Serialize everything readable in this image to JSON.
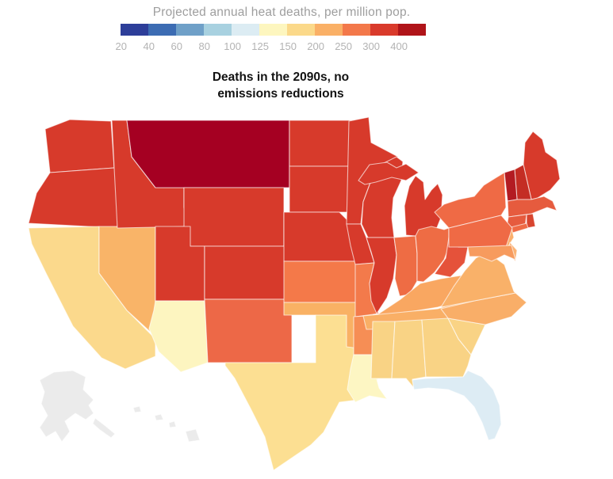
{
  "header": {
    "title": "Projected annual heat deaths, per million pop.",
    "subtitle_line1": "Deaths in the 2090s, no",
    "subtitle_line2": "emissions reductions"
  },
  "legend": {
    "labels": [
      "20",
      "40",
      "60",
      "80",
      "100",
      "125",
      "150",
      "200",
      "250",
      "300",
      "400"
    ],
    "colors": [
      "#2d3e99",
      "#3c6cb3",
      "#6fa0c8",
      "#a8d1e0",
      "#dcecf3",
      "#fdf6bf",
      "#fbd98a",
      "#fab066",
      "#f3784a",
      "#d93a2b",
      "#b01419"
    ]
  },
  "chart_data": {
    "type": "choropleth",
    "title": "Projected annual heat deaths, per million pop.",
    "scenario": "Deaths in the 2090s, no emissions reductions",
    "unit": "deaths per million population",
    "scale_breaks": [
      20,
      40,
      60,
      80,
      100,
      125,
      150,
      200,
      250,
      300,
      400
    ],
    "scale_colors": [
      "#2d3e99",
      "#3c6cb3",
      "#6fa0c8",
      "#a8d1e0",
      "#dcecf3",
      "#fdf6bf",
      "#fbd98a",
      "#fab066",
      "#f3784a",
      "#d93a2b",
      "#b01419"
    ],
    "no_data_color": "#ebebeb",
    "states": [
      {
        "id": "WA",
        "name": "Washington",
        "band": "300",
        "fill": "#d73a2b",
        "polys": [
          "57,163 88,151 140,153 144,212 63,218"
        ]
      },
      {
        "id": "OR",
        "name": "Oregon",
        "band": "300",
        "fill": "#d73a2b",
        "polys": [
          "63,218 144,212 150,222 148,288 36,282 46,244"
        ]
      },
      {
        "id": "CA",
        "name": "California",
        "band": "150",
        "fill": "#fbd98c",
        "polys": [
          "36,288 125,286 125,345 160,392 196,428 196,450 158,466 128,452 92,412 58,345 40,308"
        ]
      },
      {
        "id": "NV",
        "name": "Nevada",
        "band": "200",
        "fill": "#f9b468",
        "polys": [
          "125,286 196,286 196,425 160,392 125,345"
        ]
      },
      {
        "id": "ID",
        "name": "Idaho",
        "band": "300",
        "fill": "#d73a2b",
        "polys": [
          "141,152 160,152 166,198 196,237 232,237 232,262 240,286 148,288 144,212"
        ]
      },
      {
        "id": "MT",
        "name": "Montana",
        "band": "400+",
        "fill": "#a50022",
        "polys": [
          "160,152 365,152 365,237 232,237 196,237 166,198"
        ]
      },
      {
        "id": "WY",
        "name": "Wyoming",
        "band": "300",
        "fill": "#d73a2b",
        "polys": [
          "232,237 358,237 358,311 232,311"
        ]
      },
      {
        "id": "UT",
        "name": "Utah",
        "band": "300",
        "fill": "#d73a2b",
        "polys": [
          "196,286 240,286 240,311 258,311 258,380 196,380"
        ]
      },
      {
        "id": "CO",
        "name": "Colorado",
        "band": "300",
        "fill": "#d73a2b",
        "polys": [
          "258,311 368,311 368,378 258,378"
        ]
      },
      {
        "id": "AZ",
        "name": "Arizona",
        "band": "125",
        "fill": "#fdf5c0",
        "polys": [
          "196,380 258,380 262,458 228,470 200,444 188,415 194,392"
        ]
      },
      {
        "id": "NM",
        "name": "New Mexico",
        "band": "250",
        "fill": "#ed6847",
        "polys": [
          "258,378 368,378 368,458 262,458"
        ]
      },
      {
        "id": "ND",
        "name": "North Dakota",
        "band": "300",
        "fill": "#d73a2b",
        "polys": [
          "365,152 448,152 446,168 448,210 365,210"
        ]
      },
      {
        "id": "SD",
        "name": "South Dakota",
        "band": "300",
        "fill": "#d73a2b",
        "polys": [
          "365,210 448,210 453,225 450,268 365,268"
        ]
      },
      {
        "id": "NE",
        "name": "Nebraska",
        "band": "300",
        "fill": "#d73a2b",
        "polys": [
          "358,268 428,268 445,285 452,305 452,330 358,330"
        ]
      },
      {
        "id": "KS",
        "name": "Kansas",
        "band": "250",
        "fill": "#f47949",
        "polys": [
          "358,330 452,330 472,332 470,382 358,382"
        ]
      },
      {
        "id": "OK",
        "name": "Oklahoma",
        "band": "200",
        "fill": "#f9b164",
        "polys": [
          "358,382 470,382 472,437 452,440 398,436 398,398 358,398"
        ]
      },
      {
        "id": "TX",
        "name": "Texas",
        "band": "150",
        "fill": "#fcdf92",
        "polys": [
          "398,398 437,398 437,438 452,440 472,437 478,460 474,496 452,505 428,508 408,546 392,562 345,594 334,552 316,516 296,478 284,462 284,458 398,458"
        ]
      },
      {
        "id": "MN",
        "name": "Minnesota",
        "band": "300",
        "fill": "#d73a2b",
        "polys": [
          "440,153 465,148 468,180 502,198 476,210 468,228 458,255 455,283 437,283"
        ]
      },
      {
        "id": "IA",
        "name": "Iowa",
        "band": "300",
        "fill": "#d73a2b",
        "polys": [
          "437,283 455,283 462,300 472,332 448,334 442,310"
        ]
      },
      {
        "id": "MO",
        "name": "Missouri",
        "band": "250",
        "fill": "#f37a4b",
        "polys": [
          "448,334 472,332 466,358 470,384 478,396 448,400"
        ]
      },
      {
        "id": "AR",
        "name": "Arkansas",
        "band": "200",
        "fill": "#f68e55",
        "polys": [
          "446,400 478,398 474,448 446,448"
        ]
      },
      {
        "id": "LA",
        "name": "Louisiana",
        "band": "125",
        "fill": "#fdf6c3",
        "polys": [
          "446,448 474,448 471,464 478,490 488,504 466,500 448,508 438,492 442,466"
        ]
      },
      {
        "id": "WI",
        "name": "Wisconsin",
        "band": "300",
        "fill": "#d73a2b",
        "polys": [
          "476,210 500,198 508,204 506,228 496,250 494,275 497,300 464,300 456,283 458,255 468,228"
        ]
      },
      {
        "id": "IL",
        "name": "Illinois",
        "band": "300",
        "fill": "#d73a2b",
        "polys": [
          "462,300 497,300 500,322 496,352 488,376 475,396 468,380 466,358 472,332 468,318"
        ]
      },
      {
        "id": "MI",
        "name": "Michigan",
        "band": "300",
        "fill": "#d73a2b",
        "polys": [
          "512,297 510,260 516,235 524,222 534,230 536,252 544,240 552,232 558,246 556,275 548,295 524,298",
          "452,228 466,208 488,205 500,212 512,207 528,218 512,228 494,224 474,230 460,233"
        ]
      },
      {
        "id": "IN",
        "name": "Indiana",
        "band": "250",
        "fill": "#ee6c44",
        "polys": [
          "497,300 524,298 526,320 526,355 516,372 504,374 498,352 500,322"
        ]
      },
      {
        "id": "OH",
        "name": "Ohio",
        "band": "250",
        "fill": "#ee6c44",
        "polys": [
          "524,298 528,290 544,286 560,290 566,288 566,312 560,328 548,344 534,356 526,355 526,320"
        ]
      },
      {
        "id": "KY",
        "name": "Kentucky",
        "band": "200",
        "fill": "#f9a761",
        "polys": [
          "475,398 505,378 530,358 556,352 606,344 596,375 552,388 498,397"
        ]
      },
      {
        "id": "TN",
        "name": "Tennessee",
        "band": "200",
        "fill": "#f9af66",
        "polys": [
          "458,399 552,390 596,376 612,368 602,414 462,416"
        ]
      },
      {
        "id": "MS",
        "name": "Mississippi",
        "band": "150",
        "fill": "#f9d385",
        "polys": [
          "470,406 498,406 494,478 468,478"
        ]
      },
      {
        "id": "AL",
        "name": "Alabama",
        "band": "150",
        "fill": "#f9d385",
        "polys": [
          "498,406 532,404 537,476 520,479 522,490 512,478 494,478"
        ]
      },
      {
        "id": "GA",
        "name": "Georgia",
        "band": "150",
        "fill": "#f9d385",
        "polys": [
          "532,404 565,402 578,428 594,448 590,462 584,476 537,476"
        ]
      },
      {
        "id": "SC",
        "name": "South Carolina",
        "band": "150",
        "fill": "#f9d385",
        "polys": [
          "565,402 612,410 594,448 578,428"
        ]
      },
      {
        "id": "NC",
        "name": "North Carolina",
        "band": "200",
        "fill": "#f9ae68",
        "polys": [
          "556,390 598,380 650,370 664,382 645,400 612,410 565,402"
        ]
      },
      {
        "id": "VA",
        "name": "Virginia",
        "band": "200",
        "fill": "#f9b169",
        "polys": [
          "556,388 572,362 586,342 600,326 614,318 636,334 648,368 650,370 598,380"
        ]
      },
      {
        "id": "WV",
        "name": "West Virginia",
        "band": "250",
        "fill": "#e5523a",
        "polys": [
          "548,346 562,326 566,300 576,294 578,312 590,312 586,332 568,350"
        ]
      },
      {
        "id": "FL",
        "name": "Florida",
        "band": "100",
        "fill": "#ddecf4",
        "polys": [
          "537,478 584,476 590,468 608,476 622,492 630,512 632,536 624,554 616,556 608,534 598,514 585,500 565,492 540,490 522,492 520,480"
        ]
      },
      {
        "id": "ME",
        "name": "Maine",
        "band": "300",
        "fill": "#d73a2b",
        "polys": [
          "660,208 662,180 672,166 684,176 688,192 702,202 706,226 694,240 678,250 670,252"
        ]
      },
      {
        "id": "NH",
        "name": "New Hampshire",
        "band": "400",
        "fill": "#c42d24",
        "polys": [
          "649,214 660,208 670,252 652,252"
        ]
      },
      {
        "id": "VT",
        "name": "Vermont",
        "band": "400",
        "fill": "#b31b22",
        "polys": [
          "636,218 649,214 652,252 640,254"
        ]
      },
      {
        "id": "MA",
        "name": "Massachusetts",
        "band": "250",
        "fill": "#e65b3e",
        "polys": [
          "640,254 652,252 670,252 686,248 697,254 702,266 690,262 670,270 641,274"
        ]
      },
      {
        "id": "RI",
        "name": "Rhode Island",
        "band": "300",
        "fill": "#d8452f",
        "polys": [
          "664,271 672,270 675,286 664,288"
        ]
      },
      {
        "id": "CT",
        "name": "Connecticut",
        "band": "250",
        "fill": "#e65b3e",
        "polys": [
          "641,274 664,271 662,288 638,294"
        ]
      },
      {
        "id": "NY",
        "name": "New York",
        "band": "250",
        "fill": "#ef6a45",
        "polys": [
          "548,268 560,258 578,252 598,248 610,234 626,224 636,218 638,262 632,272 566,288",
          "640,288 664,282 666,288 643,295"
        ]
      },
      {
        "id": "NJ",
        "name": "New Jersey",
        "band": "200",
        "fill": "#fbaf6c",
        "polys": [
          "632,282 645,287 648,300 639,314 628,306 634,294"
        ]
      },
      {
        "id": "PA",
        "name": "Pennsylvania",
        "band": "250",
        "fill": "#ef6a45",
        "polys": [
          "566,288 632,272 646,288 638,312 566,312"
        ]
      },
      {
        "id": "DE",
        "name": "Delaware",
        "band": "200",
        "fill": "#fbb273",
        "polys": [
          "643,306 652,316 650,330 640,320"
        ]
      },
      {
        "id": "MD",
        "name": "Maryland",
        "band": "200",
        "fill": "#f79b5e",
        "polys": [
          "590,312 645,310 650,328 636,322 620,330 605,324 592,324"
        ]
      },
      {
        "id": "AK",
        "name": "Alaska",
        "band": "no data",
        "fill": "#ebebeb",
        "polys": [
          "50,480 68,470 92,468 108,476 105,492 118,505 112,512 118,522 108,530 95,522 82,532 88,545 78,558 70,545 58,552 50,540 60,525 52,510 56,495",
          "120,528 133,538 145,548 140,553 126,543 117,535"
        ]
      },
      {
        "id": "HI",
        "name": "Hawaii",
        "band": "no data",
        "fill": "#ebebeb",
        "polys": [
          "168,515 176,513 178,520 170,521",
          "195,525 203,523 206,530 197,531",
          "213,534 220,532 222,539 214,540",
          "234,545 247,542 252,556 238,558"
        ]
      }
    ]
  }
}
